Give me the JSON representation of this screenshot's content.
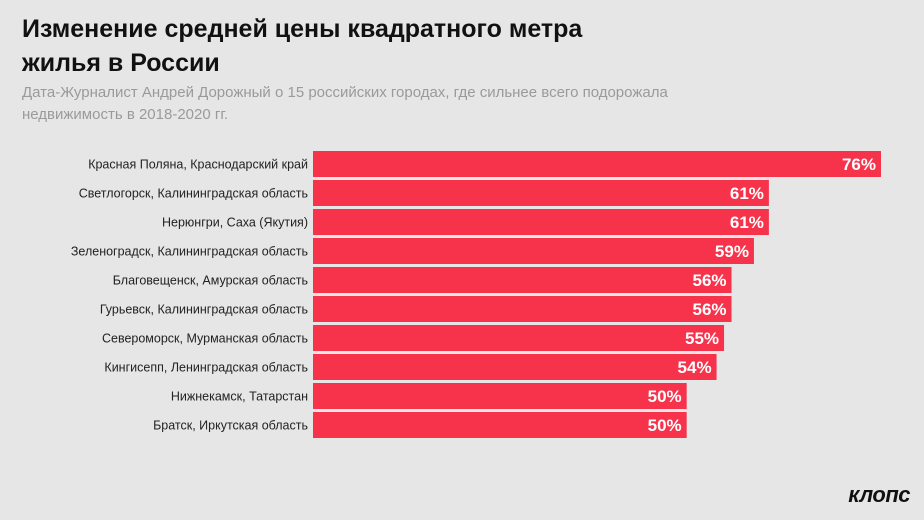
{
  "header": {
    "title": "Изменение средней цены квадратного метра жилья в России",
    "subtitle": "Дата-Журналист Андрей Дорожный о 15 российских городах, где сильнее всего подорожала недвижимость в 2018-2020 гг."
  },
  "brand": "клопс",
  "colors": {
    "bar": "#f7334b",
    "background": "#e6e6e6"
  },
  "chart_data": {
    "type": "bar",
    "orientation": "horizontal",
    "title": "Изменение средней цены квадратного метра жилья в России",
    "categories": [
      "Красная Поляна, Краснодарский край",
      "Светлогорск, Калининградская область",
      "Нерюнгри, Саха (Якутия)",
      "Зеленоградск, Калининградская область",
      "Благовещенск, Амурская область",
      "Гурьевск, Калининградская область",
      "Североморск, Мурманская область",
      "Кингисепп, Ленинградская область",
      "Нижнекамск, Татарстан",
      "Братск, Иркутская область"
    ],
    "values": [
      76,
      61,
      61,
      59,
      56,
      56,
      55,
      54,
      50,
      50
    ],
    "value_labels": [
      "76%",
      "61%",
      "61%",
      "59%",
      "56%",
      "56%",
      "55%",
      "54%",
      "50%",
      "50%"
    ],
    "xlim": [
      0,
      76
    ],
    "grid": false,
    "legend": "none"
  }
}
